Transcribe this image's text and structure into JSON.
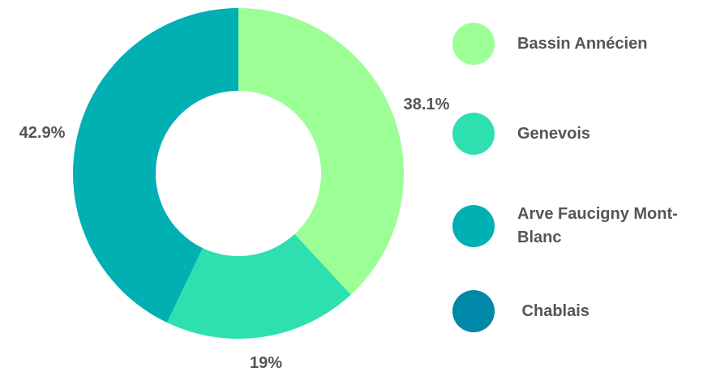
{
  "chart_data": {
    "type": "pie",
    "variant": "donut",
    "categories": [
      "Bassin Annécien",
      "Genevois",
      "Arve Faucigny Mont-Blanc",
      "Chablais"
    ],
    "values": [
      38.1,
      19,
      42.9,
      0
    ],
    "value_labels": [
      "38.1%",
      "19%",
      "42.9%",
      ""
    ],
    "colors": [
      "#9cff96",
      "#2ee0b0",
      "#00b0b2",
      "#0088a8"
    ],
    "legend_position": "right"
  },
  "legend": {
    "items": [
      {
        "label": "Bassin Annécien",
        "color": "#9cff96"
      },
      {
        "label": "Genevois",
        "color": "#2ee0b0"
      },
      {
        "label": "Arve Faucigny Mont-Blanc",
        "color": "#00b0b2"
      },
      {
        "label": " Chablais",
        "color": "#0088a8"
      }
    ]
  }
}
